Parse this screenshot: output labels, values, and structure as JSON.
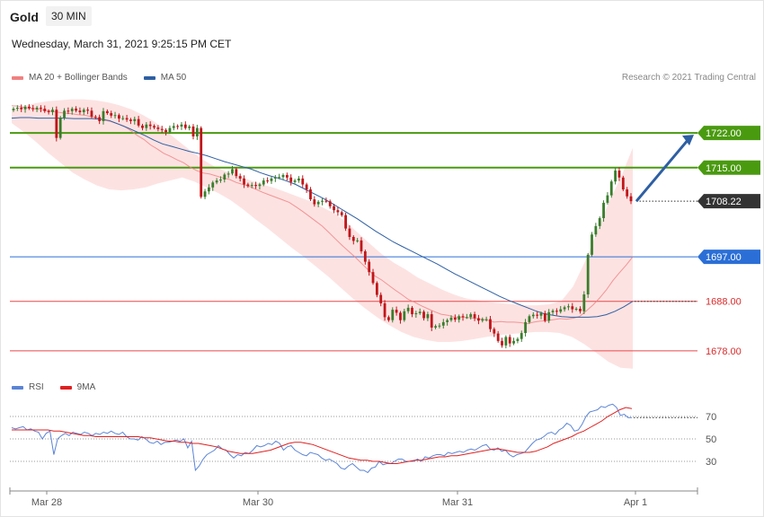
{
  "header": {
    "symbol": "Gold",
    "timeframe": "30 MIN",
    "datetime": "Wednesday, March 31, 2021 9:25:15 PM CET"
  },
  "legend_main": [
    {
      "label": "MA 20 + Bollinger Bands",
      "color": "#f08080"
    },
    {
      "label": "MA 50",
      "color": "#2e5fa3"
    }
  ],
  "legend_rsi": [
    {
      "label": "RSI",
      "color": "#5b84d6"
    },
    {
      "label": "9MA",
      "color": "#e02020"
    }
  ],
  "credit": "Research © 2021 Trading Central",
  "colors": {
    "up": "#3a7d2c",
    "down": "#c0161a",
    "resistance": "#4a9a10",
    "pivot": "#2b6fd6",
    "support": "#e8484a",
    "band": "#fde2e2",
    "current": "#333333",
    "arrow": "#2e5fa3"
  },
  "chart_data": [
    {
      "type": "candlestick",
      "x_tick_labels": [
        "Mar 28",
        "Mar 30",
        "Mar 31",
        "Apr 1"
      ],
      "ylim": [
        1672,
        1730
      ],
      "levels": [
        {
          "name": "resistance-2",
          "value": 1722.0,
          "label": "1722.00",
          "kind": "resistance"
        },
        {
          "name": "resistance-1",
          "value": 1715.0,
          "label": "1715.00",
          "kind": "resistance"
        },
        {
          "name": "pivot",
          "value": 1697.0,
          "label": "1697.00",
          "kind": "pivot"
        },
        {
          "name": "support-1",
          "value": 1688.0,
          "label": "1688.00",
          "kind": "support"
        },
        {
          "name": "support-2",
          "value": 1678.0,
          "label": "1678.00",
          "kind": "support"
        }
      ],
      "current_price": {
        "value": 1708.22,
        "label": "1708.22"
      },
      "close": [
        1726.9,
        1727.1,
        1726.8,
        1727.3,
        1727.0,
        1726.8,
        1727.1,
        1726.9,
        1726.4,
        1726.2,
        1726.7,
        1721.0,
        1725.1,
        1726.5,
        1726.4,
        1726.9,
        1726.5,
        1726.2,
        1726.7,
        1726.5,
        1725.3,
        1725.2,
        1724.4,
        1726.4,
        1726.0,
        1725.5,
        1725.6,
        1724.9,
        1725.0,
        1724.7,
        1724.4,
        1724.8,
        1723.5,
        1723.0,
        1723.7,
        1723.4,
        1723.1,
        1722.8,
        1722.6,
        1722.2,
        1723.0,
        1723.4,
        1723.3,
        1723.7,
        1723.0,
        1723.3,
        1721.3,
        1723.0,
        1709.1,
        1710.2,
        1711.0,
        1712.0,
        1712.4,
        1712.6,
        1713.6,
        1713.8,
        1714.7,
        1713.3,
        1712.8,
        1711.6,
        1711.3,
        1711.5,
        1711.3,
        1711.6,
        1712.4,
        1712.3,
        1712.8,
        1713.0,
        1713.1,
        1713.5,
        1713.0,
        1712.1,
        1712.4,
        1712.8,
        1711.6,
        1710.6,
        1708.6,
        1707.6,
        1708.1,
        1708.3,
        1708.2,
        1707.2,
        1706.4,
        1706.0,
        1705.4,
        1702.7,
        1701.0,
        1700.2,
        1700.3,
        1698.1,
        1696.0,
        1693.9,
        1691.7,
        1689.3,
        1687.6,
        1684.8,
        1684.2,
        1686.3,
        1685.7,
        1684.2,
        1686.0,
        1686.7,
        1685.4,
        1685.6,
        1685.9,
        1684.6,
        1685.4,
        1682.7,
        1683.0,
        1683.1,
        1683.8,
        1684.2,
        1684.7,
        1684.3,
        1685.0,
        1684.8,
        1684.8,
        1685.4,
        1684.6,
        1684.1,
        1684.4,
        1684.4,
        1682.4,
        1681.5,
        1680.0,
        1679.1,
        1680.8,
        1679.5,
        1680.0,
        1680.4,
        1681.6,
        1683.8,
        1685.0,
        1685.3,
        1685.1,
        1685.6,
        1684.1,
        1685.8,
        1686.1,
        1685.9,
        1686.4,
        1686.8,
        1687.0,
        1686.4,
        1686.5,
        1686.0,
        1689.4,
        1697.4,
        1701.5,
        1703.2,
        1704.8,
        1707.9,
        1709.4,
        1712.2,
        1714.4,
        1713.0,
        1710.6,
        1709.2,
        1708.22
      ],
      "ma20_mid": [
        1727.5,
        1727.4,
        1727.1,
        1727.0,
        1726.8,
        1726.6,
        1726.4,
        1726.2,
        1726.0,
        1725.9,
        1725.7,
        1725.6,
        1725.3,
        1725.0,
        1724.6,
        1724.3,
        1723.9,
        1723.4,
        1722.5,
        1721.5,
        1720.7,
        1719.6,
        1718.8,
        1717.9,
        1717.3,
        1716.6,
        1716.0,
        1715.1,
        1714.4,
        1713.9,
        1713.7,
        1713.3,
        1712.9,
        1712.6,
        1712.0,
        1711.6,
        1711.2,
        1710.6,
        1710.0,
        1709.5,
        1709.0,
        1708.5,
        1708.0,
        1707.1,
        1706.2,
        1705.2,
        1704.2,
        1703.2,
        1701.9,
        1700.6,
        1699.3,
        1698.1,
        1696.9,
        1695.6,
        1694.3,
        1693.1,
        1692.3,
        1691.3,
        1690.3,
        1689.4,
        1688.4,
        1687.8,
        1687.1,
        1686.5,
        1685.9,
        1685.4,
        1685.2,
        1684.8,
        1684.8,
        1684.7,
        1684.6,
        1684.4,
        1684.2,
        1683.8,
        1683.9,
        1683.8,
        1683.8,
        1683.7,
        1683.5,
        1683.8,
        1684.0,
        1684.1,
        1684.3,
        1684.5,
        1684.4,
        1684.6,
        1685.0,
        1686.1,
        1687.3,
        1688.7,
        1690.3,
        1692.2,
        1693.8,
        1695.3,
        1697.0
      ],
      "ma50": [
        1725.0,
        1725.1,
        1725.1,
        1725.0,
        1725.0,
        1725.0,
        1725.0,
        1724.9,
        1724.9,
        1724.9,
        1724.8,
        1724.5,
        1723.8,
        1723.1,
        1722.3,
        1721.5,
        1720.6,
        1719.8,
        1719.3,
        1718.8,
        1718.3,
        1717.9,
        1717.4,
        1716.8,
        1716.2,
        1715.7,
        1715.2,
        1714.7,
        1714.0,
        1713.4,
        1712.9,
        1712.3,
        1711.6,
        1710.7,
        1709.8,
        1708.9,
        1707.9,
        1706.8,
        1705.7,
        1704.6,
        1703.4,
        1702.2,
        1701.1,
        1700.0,
        1699.1,
        1698.2,
        1697.3,
        1696.4,
        1695.5,
        1694.5,
        1693.5,
        1692.6,
        1691.7,
        1690.8,
        1689.9,
        1689.0,
        1688.2,
        1687.5,
        1686.8,
        1686.1,
        1685.5,
        1685.2,
        1684.9,
        1684.8,
        1684.8,
        1684.8,
        1684.9,
        1685.3,
        1686.0,
        1686.9,
        1688.0
      ],
      "bb_upper": [
        1726.8,
        1727.4,
        1728.0,
        1728.4,
        1728.6,
        1728.8,
        1728.8,
        1728.6,
        1728.2,
        1727.6,
        1726.8,
        1725.6,
        1724.2,
        1722.2,
        1720.3,
        1718.4,
        1716.6,
        1715.2,
        1714.2,
        1713.3,
        1712.4,
        1711.6,
        1710.9,
        1710.0,
        1709.1,
        1708.2,
        1707.0,
        1705.8,
        1704.0,
        1701.8,
        1699.6,
        1697.5,
        1695.8,
        1694.4,
        1692.8,
        1691.6,
        1690.4,
        1689.4,
        1688.6,
        1688.2,
        1687.8,
        1687.6,
        1687.4,
        1687.2,
        1687.2,
        1687.4,
        1688.0,
        1691.0,
        1696.0,
        1702.0,
        1708.0,
        1713.0,
        1719.0
      ],
      "bb_lower": [
        1724.0,
        1722.2,
        1720.2,
        1718.0,
        1716.0,
        1714.0,
        1712.6,
        1711.4,
        1710.6,
        1710.4,
        1710.6,
        1711.0,
        1711.8,
        1712.4,
        1713.0,
        1712.2,
        1711.0,
        1709.8,
        1708.4,
        1706.6,
        1704.6,
        1702.8,
        1700.8,
        1698.8,
        1697.0,
        1695.0,
        1693.0,
        1690.8,
        1688.6,
        1686.6,
        1684.8,
        1683.2,
        1681.8,
        1680.8,
        1680.2,
        1679.8,
        1679.8,
        1680.0,
        1680.4,
        1680.8,
        1681.2,
        1681.4,
        1681.6,
        1681.8,
        1681.8,
        1681.6,
        1680.8,
        1679.4,
        1677.6,
        1675.8,
        1674.6,
        1674.4
      ],
      "rsi_ticks": [
        70,
        50,
        30
      ],
      "rsi": [
        60,
        59,
        60,
        61,
        58,
        59,
        57,
        56,
        50,
        55,
        57,
        36,
        50,
        53,
        55,
        53,
        56,
        55,
        54,
        56,
        55,
        53,
        55,
        54,
        56,
        55,
        57,
        55,
        54,
        56,
        52,
        50,
        50,
        49,
        52,
        50,
        47,
        46,
        48,
        45,
        47,
        47,
        48,
        49,
        48,
        50,
        42,
        48,
        22,
        26,
        32,
        36,
        38,
        40,
        44,
        41,
        40,
        36,
        33,
        36,
        35,
        38,
        37,
        40,
        44,
        43,
        44,
        46,
        45,
        48,
        46,
        40,
        43,
        44,
        40,
        38,
        36,
        35,
        38,
        37,
        36,
        33,
        31,
        32,
        30,
        28,
        24,
        23,
        26,
        28,
        25,
        22,
        22,
        20,
        24,
        25,
        30,
        27,
        28,
        28,
        30,
        32,
        32,
        30,
        30,
        30,
        32,
        30,
        34,
        33,
        35,
        36,
        36,
        35,
        38,
        37,
        38,
        39,
        38,
        40,
        41,
        40,
        42,
        44,
        45,
        41,
        40,
        42,
        39,
        40,
        36,
        34,
        36,
        37,
        38,
        42,
        46,
        49,
        50,
        52,
        55,
        56,
        54,
        58,
        60,
        64,
        62,
        57,
        58,
        63,
        70,
        74,
        75,
        76,
        79,
        78,
        80,
        81,
        78,
        71,
        72,
        69,
        69
      ],
      "rsi_ma": [
        58,
        58,
        58,
        58,
        58,
        58,
        58,
        57,
        57,
        56,
        55,
        54,
        53,
        53,
        52,
        52,
        52,
        52,
        52,
        52,
        52,
        52,
        51,
        51,
        50,
        49,
        48,
        48,
        47,
        47,
        46,
        46,
        45,
        44,
        43,
        41,
        39,
        38,
        37,
        37,
        37,
        38,
        39,
        40,
        42,
        44,
        46,
        47,
        47,
        46,
        45,
        43,
        41,
        39,
        37,
        35,
        33,
        32,
        31,
        31,
        30,
        30,
        29,
        28,
        28,
        29,
        30,
        31,
        31,
        32,
        33,
        34,
        34,
        35,
        35,
        36,
        37,
        38,
        39,
        40,
        41,
        41,
        40,
        39,
        38,
        38,
        38,
        39,
        41,
        43,
        46,
        48,
        50,
        52,
        55,
        57,
        60,
        63,
        66,
        70,
        73,
        76,
        78,
        77
      ]
    }
  ]
}
